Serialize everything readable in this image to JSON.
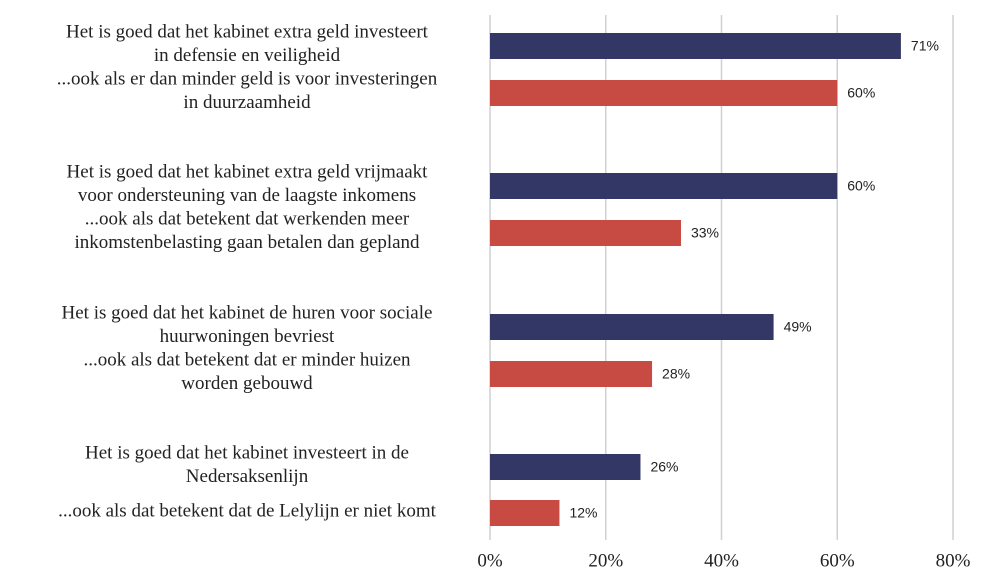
{
  "chart_data": {
    "type": "barh",
    "categories": [
      [
        "Het is goed dat het kabinet extra geld investeert",
        "in defensie en veiligheid"
      ],
      [
        "...ook als er dan minder geld is voor investeringen",
        "in duurzaamheid"
      ],
      [
        "Het is goed dat het kabinet extra geld vrijmaakt",
        "voor ondersteuning van de laagste inkomens"
      ],
      [
        "...ook als dat betekent dat werkenden meer",
        "inkomstenbelasting gaan betalen dan gepland"
      ],
      [
        "Het is goed dat het kabinet de huren voor sociale",
        "huurwoningen bevriest"
      ],
      [
        "...ook als dat betekent dat er minder huizen",
        "worden gebouwd"
      ],
      [
        "Het is goed dat het kabinet investeert in de",
        "Nedersaksenlijn"
      ],
      [
        "...ook als dat betekent dat de Lelylijn er niet komt"
      ]
    ],
    "values": [
      71,
      60,
      60,
      33,
      49,
      28,
      26,
      12
    ],
    "value_labels": [
      "71%",
      "60%",
      "60%",
      "33%",
      "49%",
      "28%",
      "26%",
      "12%"
    ],
    "colors": [
      "#323765",
      "#c84b43",
      "#323765",
      "#c84b43",
      "#323765",
      "#c84b43",
      "#323765",
      "#c84b43"
    ],
    "xlim": [
      0,
      80
    ],
    "xticks": [
      {
        "value": 0,
        "label": "0%"
      },
      {
        "value": 20,
        "label": "20%"
      },
      {
        "value": 40,
        "label": "40%"
      },
      {
        "value": 60,
        "label": "60%"
      },
      {
        "value": 80,
        "label": "80%"
      }
    ],
    "grid": true
  }
}
